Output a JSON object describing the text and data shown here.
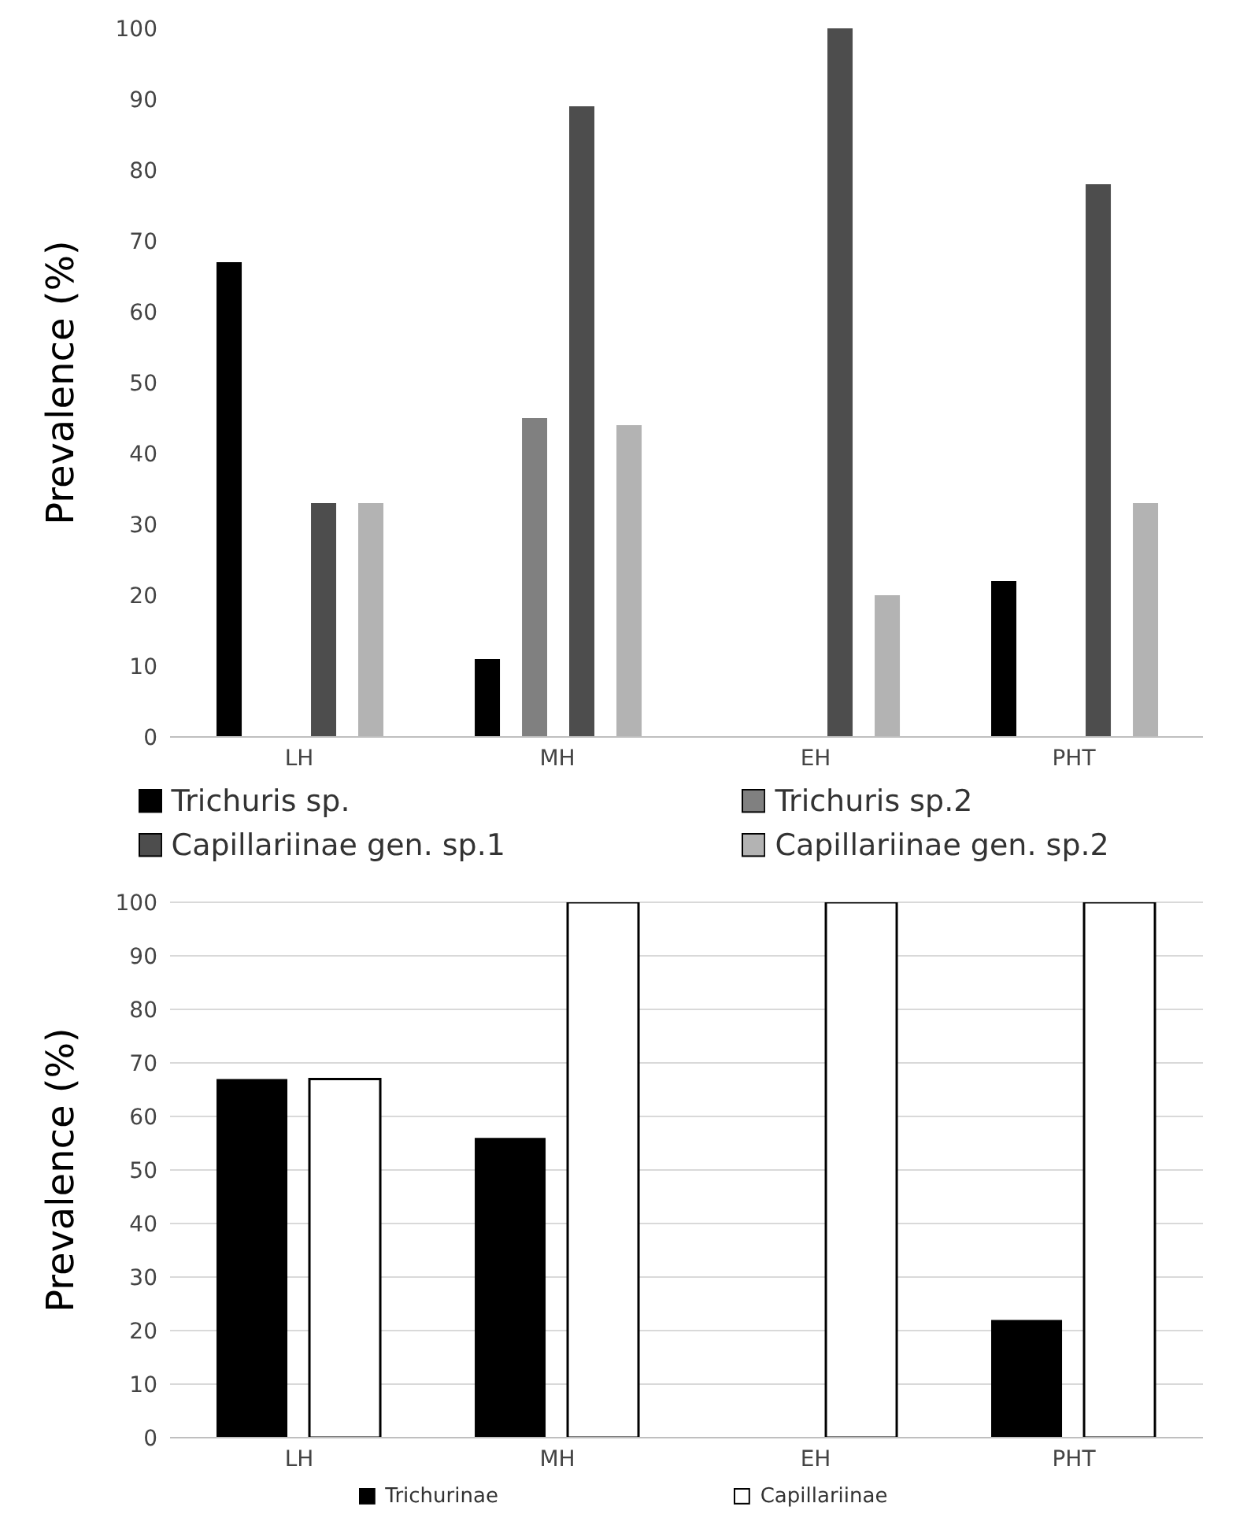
{
  "chart_data": [
    {
      "type": "bar",
      "ylabel": "Prevalence (%)",
      "categories": [
        "LH",
        "MH",
        "EH",
        "PHT"
      ],
      "ylim": [
        0,
        100
      ],
      "yticks": [
        0,
        10,
        20,
        30,
        40,
        50,
        60,
        70,
        80,
        90,
        100
      ],
      "grid": false,
      "legend": "bottom",
      "series": [
        {
          "name": "Trichuris sp.",
          "color": "#000000",
          "values": [
            67,
            11,
            0,
            22
          ]
        },
        {
          "name": "Trichuris sp.2",
          "color": "#808080",
          "values": [
            0,
            45,
            0,
            0
          ]
        },
        {
          "name": "Capillariinae gen. sp.1",
          "color": "#4d4d4d",
          "values": [
            33,
            89,
            100,
            78
          ]
        },
        {
          "name": "Capillariinae gen. sp.2",
          "color": "#b3b3b3",
          "values": [
            33,
            44,
            20,
            33
          ]
        }
      ]
    },
    {
      "type": "bar",
      "ylabel": "Prevalence (%)",
      "categories": [
        "LH",
        "MH",
        "EH",
        "PHT"
      ],
      "ylim": [
        0,
        100
      ],
      "yticks": [
        0,
        10,
        20,
        30,
        40,
        50,
        60,
        70,
        80,
        90,
        100
      ],
      "grid": "y",
      "legend": "bottom",
      "series": [
        {
          "name": "Trichurinae",
          "color": "#000000",
          "values": [
            67,
            56,
            0,
            22
          ]
        },
        {
          "name": "Capillariinae",
          "color": "#ffffff",
          "values": [
            67,
            100,
            100,
            100
          ]
        }
      ]
    }
  ]
}
